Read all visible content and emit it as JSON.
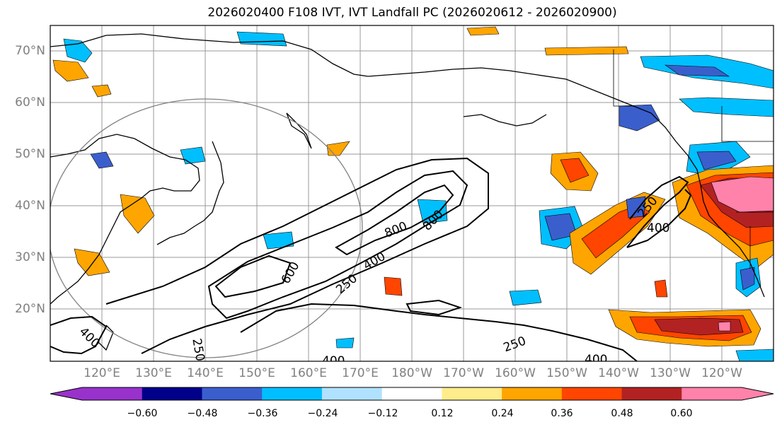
{
  "title": "2026020400 F108 IVT, IVT Landfall PC (2026020612 - 2026020900)",
  "lat_labels": [
    "70°N",
    "60°N",
    "50°N",
    "40°N",
    "30°N",
    "20°N"
  ],
  "lon_labels": [
    "120°E",
    "130°E",
    "140°E",
    "150°E",
    "160°E",
    "170°E",
    "180°W",
    "170°W",
    "160°W",
    "150°W",
    "140°W",
    "130°W",
    "120°W"
  ],
  "contour_labels": [
    "800",
    "800",
    "600",
    "400",
    "400",
    "250",
    "250",
    "250",
    "400",
    "400",
    "250",
    "400"
  ],
  "colorbar": {
    "tick_labels": [
      "−0.60",
      "−0.48",
      "−0.36",
      "−0.24",
      "−0.12",
      "0.12",
      "0.24",
      "0.36",
      "0.48",
      "0.60"
    ],
    "colors": [
      "#9932CC",
      "#00008B",
      "#3A5FCD",
      "#00BFFF",
      "#B0E2FF",
      "#FFFFFF",
      "#FFEC8B",
      "#FFA500",
      "#FF4500",
      "#B22222",
      "#FF82AB"
    ]
  }
}
